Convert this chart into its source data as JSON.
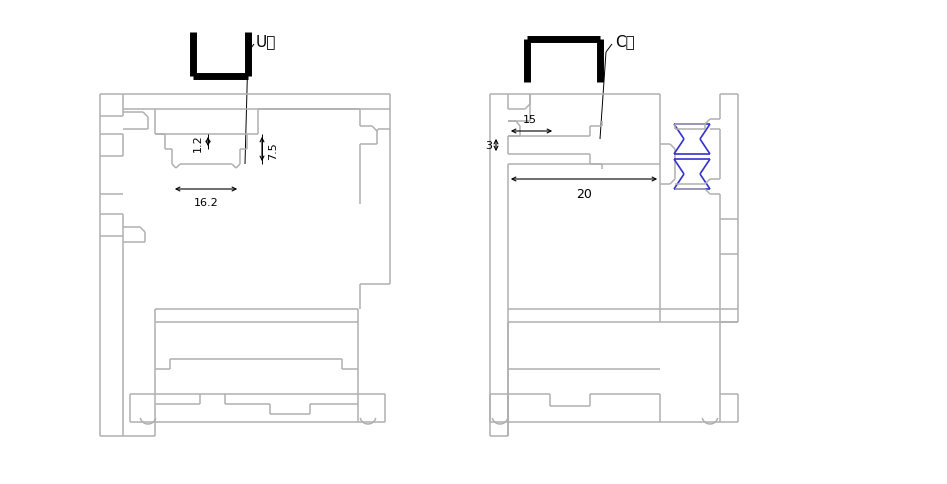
{
  "bg_color": "#ffffff",
  "line_color": "#b0b0b0",
  "dark_line": "#000000",
  "blue_color": "#3333cc",
  "fig_width": 9.47,
  "fig_height": 4.85,
  "u_label": "U槽",
  "c_label": "C槽",
  "dim_75": "7.5",
  "dim_12": "1.2",
  "dim_162": "16.2",
  "dim_15": "15",
  "dim_3": "3",
  "dim_20": "20"
}
